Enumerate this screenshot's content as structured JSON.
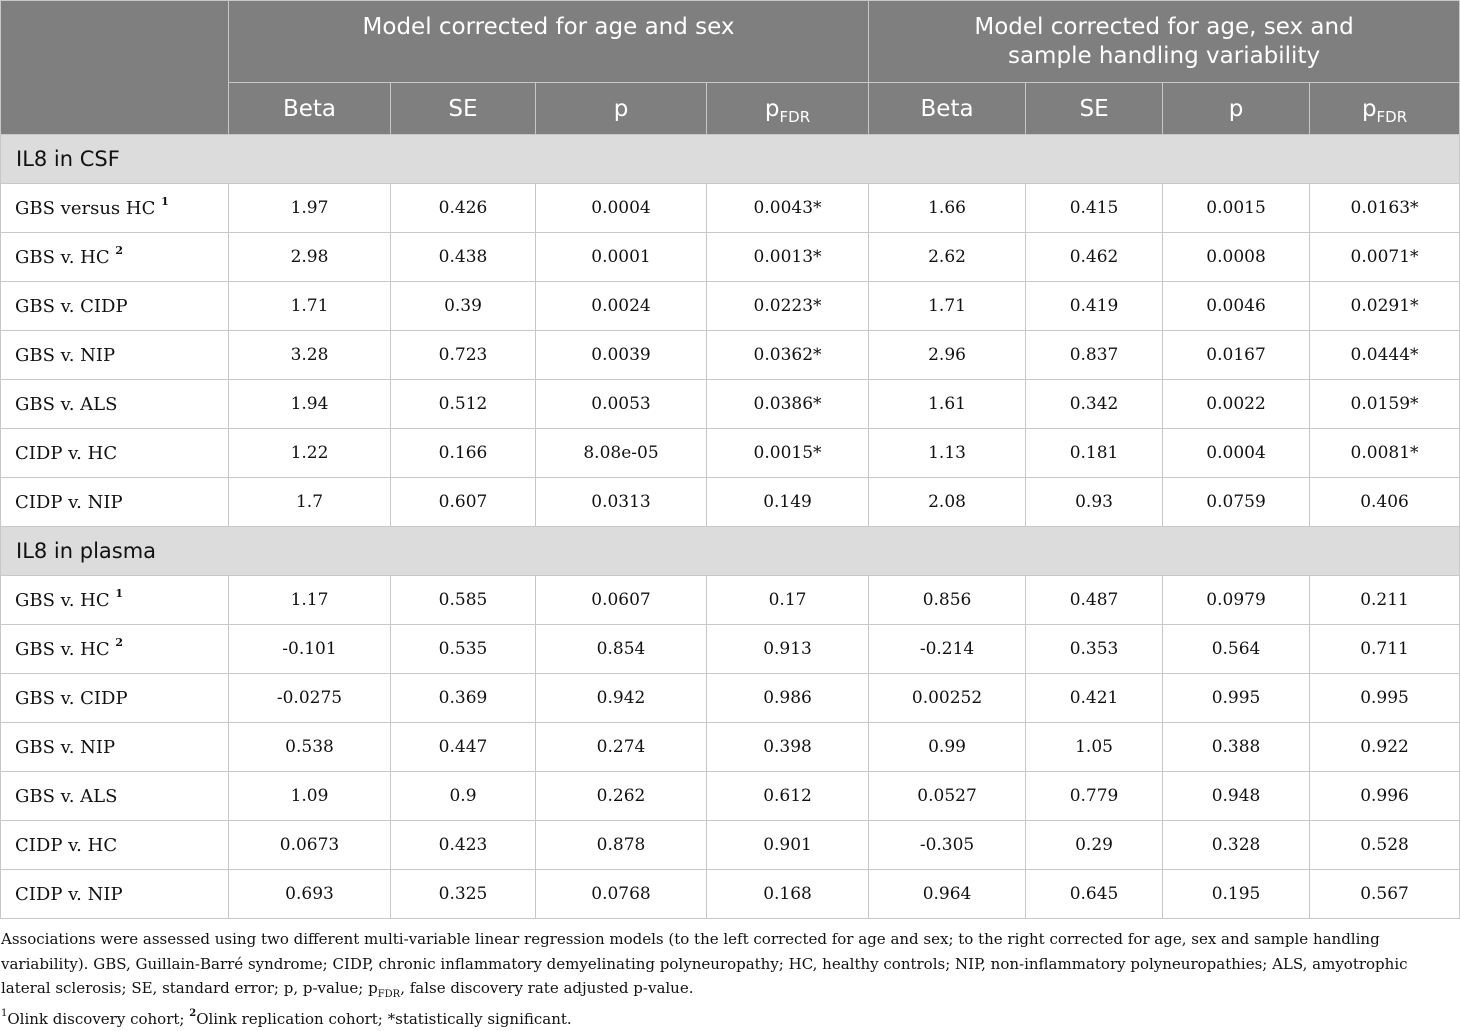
{
  "header": {
    "group1": "Model corrected for age and sex",
    "group2": "Model corrected for age, sex and sample handling variability",
    "columns": [
      {
        "main": "Beta",
        "sub": ""
      },
      {
        "main": "SE",
        "sub": ""
      },
      {
        "main": "p",
        "sub": ""
      },
      {
        "main": "p",
        "sub": "FDR"
      },
      {
        "main": "Beta",
        "sub": ""
      },
      {
        "main": "SE",
        "sub": ""
      },
      {
        "main": "p",
        "sub": ""
      },
      {
        "main": "p",
        "sub": "FDR"
      }
    ]
  },
  "sections": [
    {
      "title": "IL8 in CSF",
      "rows": [
        {
          "label": "GBS versus HC",
          "sup": "1",
          "values": [
            "1.97",
            "0.426",
            "0.0004",
            "0.0043*",
            "1.66",
            "0.415",
            "0.0015",
            "0.0163*"
          ]
        },
        {
          "label": "GBS v. HC",
          "sup": "2",
          "values": [
            "2.98",
            "0.438",
            "0.0001",
            "0.0013*",
            "2.62",
            "0.462",
            "0.0008",
            "0.0071*"
          ]
        },
        {
          "label": "GBS v. CIDP",
          "sup": "",
          "values": [
            "1.71",
            "0.39",
            "0.0024",
            "0.0223*",
            "1.71",
            "0.419",
            "0.0046",
            "0.0291*"
          ]
        },
        {
          "label": "GBS v. NIP",
          "sup": "",
          "values": [
            "3.28",
            "0.723",
            "0.0039",
            "0.0362*",
            "2.96",
            "0.837",
            "0.0167",
            "0.0444*"
          ]
        },
        {
          "label": "GBS v. ALS",
          "sup": "",
          "values": [
            "1.94",
            "0.512",
            "0.0053",
            "0.0386*",
            "1.61",
            "0.342",
            "0.0022",
            "0.0159*"
          ]
        },
        {
          "label": "CIDP v. HC",
          "sup": "",
          "values": [
            "1.22",
            "0.166",
            "8.08e-05",
            "0.0015*",
            "1.13",
            "0.181",
            "0.0004",
            "0.0081*"
          ]
        },
        {
          "label": "CIDP v. NIP",
          "sup": "",
          "values": [
            "1.7",
            "0.607",
            "0.0313",
            "0.149",
            "2.08",
            "0.93",
            "0.0759",
            "0.406"
          ]
        }
      ]
    },
    {
      "title": "IL8 in plasma",
      "rows": [
        {
          "label": "GBS v. HC",
          "sup": "1",
          "values": [
            "1.17",
            "0.585",
            "0.0607",
            "0.17",
            "0.856",
            "0.487",
            "0.0979",
            "0.211"
          ]
        },
        {
          "label": "GBS v. HC",
          "sup": "2",
          "values": [
            "-0.101",
            "0.535",
            "0.854",
            "0.913",
            "-0.214",
            "0.353",
            "0.564",
            "0.711"
          ]
        },
        {
          "label": "GBS v. CIDP",
          "sup": "",
          "values": [
            "-0.0275",
            "0.369",
            "0.942",
            "0.986",
            "0.00252",
            "0.421",
            "0.995",
            "0.995"
          ]
        },
        {
          "label": "GBS v. NIP",
          "sup": "",
          "values": [
            "0.538",
            "0.447",
            "0.274",
            "0.398",
            "0.99",
            "1.05",
            "0.388",
            "0.922"
          ]
        },
        {
          "label": "GBS v. ALS",
          "sup": "",
          "values": [
            "1.09",
            "0.9",
            "0.262",
            "0.612",
            "0.0527",
            "0.779",
            "0.948",
            "0.996"
          ]
        },
        {
          "label": "CIDP v. HC",
          "sup": "",
          "values": [
            "0.0673",
            "0.423",
            "0.878",
            "0.901",
            "-0.305",
            "0.29",
            "0.328",
            "0.528"
          ]
        },
        {
          "label": "CIDP v. NIP",
          "sup": "",
          "values": [
            "0.693",
            "0.325",
            "0.0768",
            "0.168",
            "0.964",
            "0.645",
            "0.195",
            "0.567"
          ]
        }
      ]
    }
  ],
  "notes": {
    "line1": "Associations were assessed using two different multi-variable linear regression models (to the left corrected for age and sex; to the right corrected for age, sex and sample handling variability). GBS, Guillain-Barré syndrome; CIDP, chronic inflammatory demyelinating polyneuropathy; HC, healthy controls; NIP, non-inflammatory polyneuropathies; ALS, amyotrophic lateral sclerosis; SE, standard error; p, p-value; p",
    "line1_sub": "FDR",
    "line1_end": ", false discovery rate adjusted p-value.",
    "fn1_mark": "1",
    "fn1_text": "Olink discovery cohort; ",
    "fn2_mark": "2",
    "fn2_text": "Olink replication cohort; *statistically significant."
  }
}
